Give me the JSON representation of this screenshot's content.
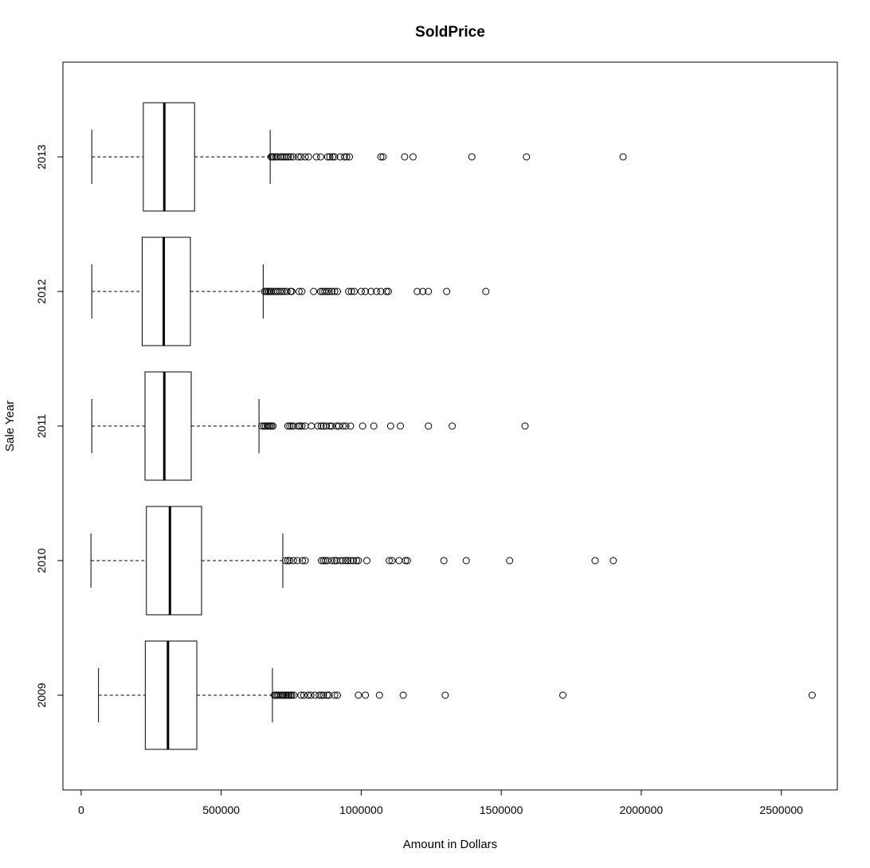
{
  "chart_data": {
    "type": "boxplot",
    "orientation": "horizontal",
    "title": "SoldPrice",
    "xlabel": "Amount in Dollars",
    "ylabel": "Sale Year",
    "xlim": [
      -65000,
      2700000
    ],
    "x_ticks": [
      0,
      500000,
      1000000,
      1500000,
      2000000,
      2500000
    ],
    "x_tick_labels": [
      "0",
      "500000",
      "1000000",
      "1500000",
      "2000000",
      "2500000"
    ],
    "grid": false,
    "legend": "none",
    "colors": {
      "box_fill": "#ffffff",
      "stroke": "#000000",
      "background": "#ffffff"
    },
    "categories": [
      "2009",
      "2010",
      "2011",
      "2012",
      "2013"
    ],
    "boxes": [
      {
        "category": "2009",
        "whisker_low": 62000,
        "q1": 229000,
        "median": 310000,
        "q3": 413000,
        "whisker_high": 683000,
        "outliers": [
          690000,
          695000,
          700000,
          705000,
          712000,
          718000,
          722000,
          728000,
          733000,
          738000,
          742000,
          748000,
          752000,
          760000,
          785000,
          795000,
          810000,
          820000,
          835000,
          850000,
          858000,
          865000,
          878000,
          885000,
          905000,
          915000,
          990000,
          1015000,
          1065000,
          1150000,
          1300000,
          1720000,
          2610000
        ]
      },
      {
        "category": "2010",
        "whisker_low": 35000,
        "q1": 233000,
        "median": 317000,
        "q3": 430000,
        "whisker_high": 720000,
        "outliers": [
          730000,
          738000,
          745000,
          758000,
          772000,
          790000,
          800000,
          858000,
          865000,
          872000,
          880000,
          895000,
          905000,
          912000,
          925000,
          935000,
          945000,
          952000,
          962000,
          972000,
          983000,
          990000,
          1020000,
          1100000,
          1110000,
          1135000,
          1158000,
          1165000,
          1295000,
          1375000,
          1530000,
          1835000,
          1900000
        ]
      },
      {
        "category": "2011",
        "whisker_low": 38000,
        "q1": 228000,
        "median": 297000,
        "q3": 393000,
        "whisker_high": 635000,
        "outliers": [
          645000,
          652000,
          658000,
          665000,
          670000,
          675000,
          680000,
          685000,
          738000,
          745000,
          752000,
          758000,
          775000,
          780000,
          788000,
          800000,
          822000,
          845000,
          857000,
          865000,
          875000,
          888000,
          895000,
          912000,
          920000,
          935000,
          945000,
          962000,
          1005000,
          1045000,
          1105000,
          1140000,
          1240000,
          1325000,
          1585000
        ]
      },
      {
        "category": "2012",
        "whisker_low": 38000,
        "q1": 218000,
        "median": 295000,
        "q3": 390000,
        "whisker_high": 650000,
        "outliers": [
          655000,
          660000,
          665000,
          670000,
          675000,
          680000,
          688000,
          695000,
          702000,
          710000,
          718000,
          725000,
          735000,
          748000,
          752000,
          778000,
          788000,
          830000,
          855000,
          862000,
          870000,
          878000,
          885000,
          895000,
          905000,
          915000,
          955000,
          965000,
          975000,
          1000000,
          1015000,
          1035000,
          1055000,
          1070000,
          1090000,
          1097000,
          1200000,
          1220000,
          1240000,
          1305000,
          1445000
        ]
      },
      {
        "category": "2013",
        "whisker_low": 38000,
        "q1": 222000,
        "median": 297000,
        "q3": 405000,
        "whisker_high": 675000,
        "outliers": [
          678000,
          682000,
          688000,
          695000,
          702000,
          712000,
          718000,
          725000,
          732000,
          740000,
          748000,
          758000,
          775000,
          785000,
          800000,
          812000,
          840000,
          855000,
          880000,
          888000,
          898000,
          905000,
          925000,
          940000,
          948000,
          958000,
          1070000,
          1078000,
          1155000,
          1185000,
          1395000,
          1590000,
          1935000
        ]
      }
    ]
  }
}
